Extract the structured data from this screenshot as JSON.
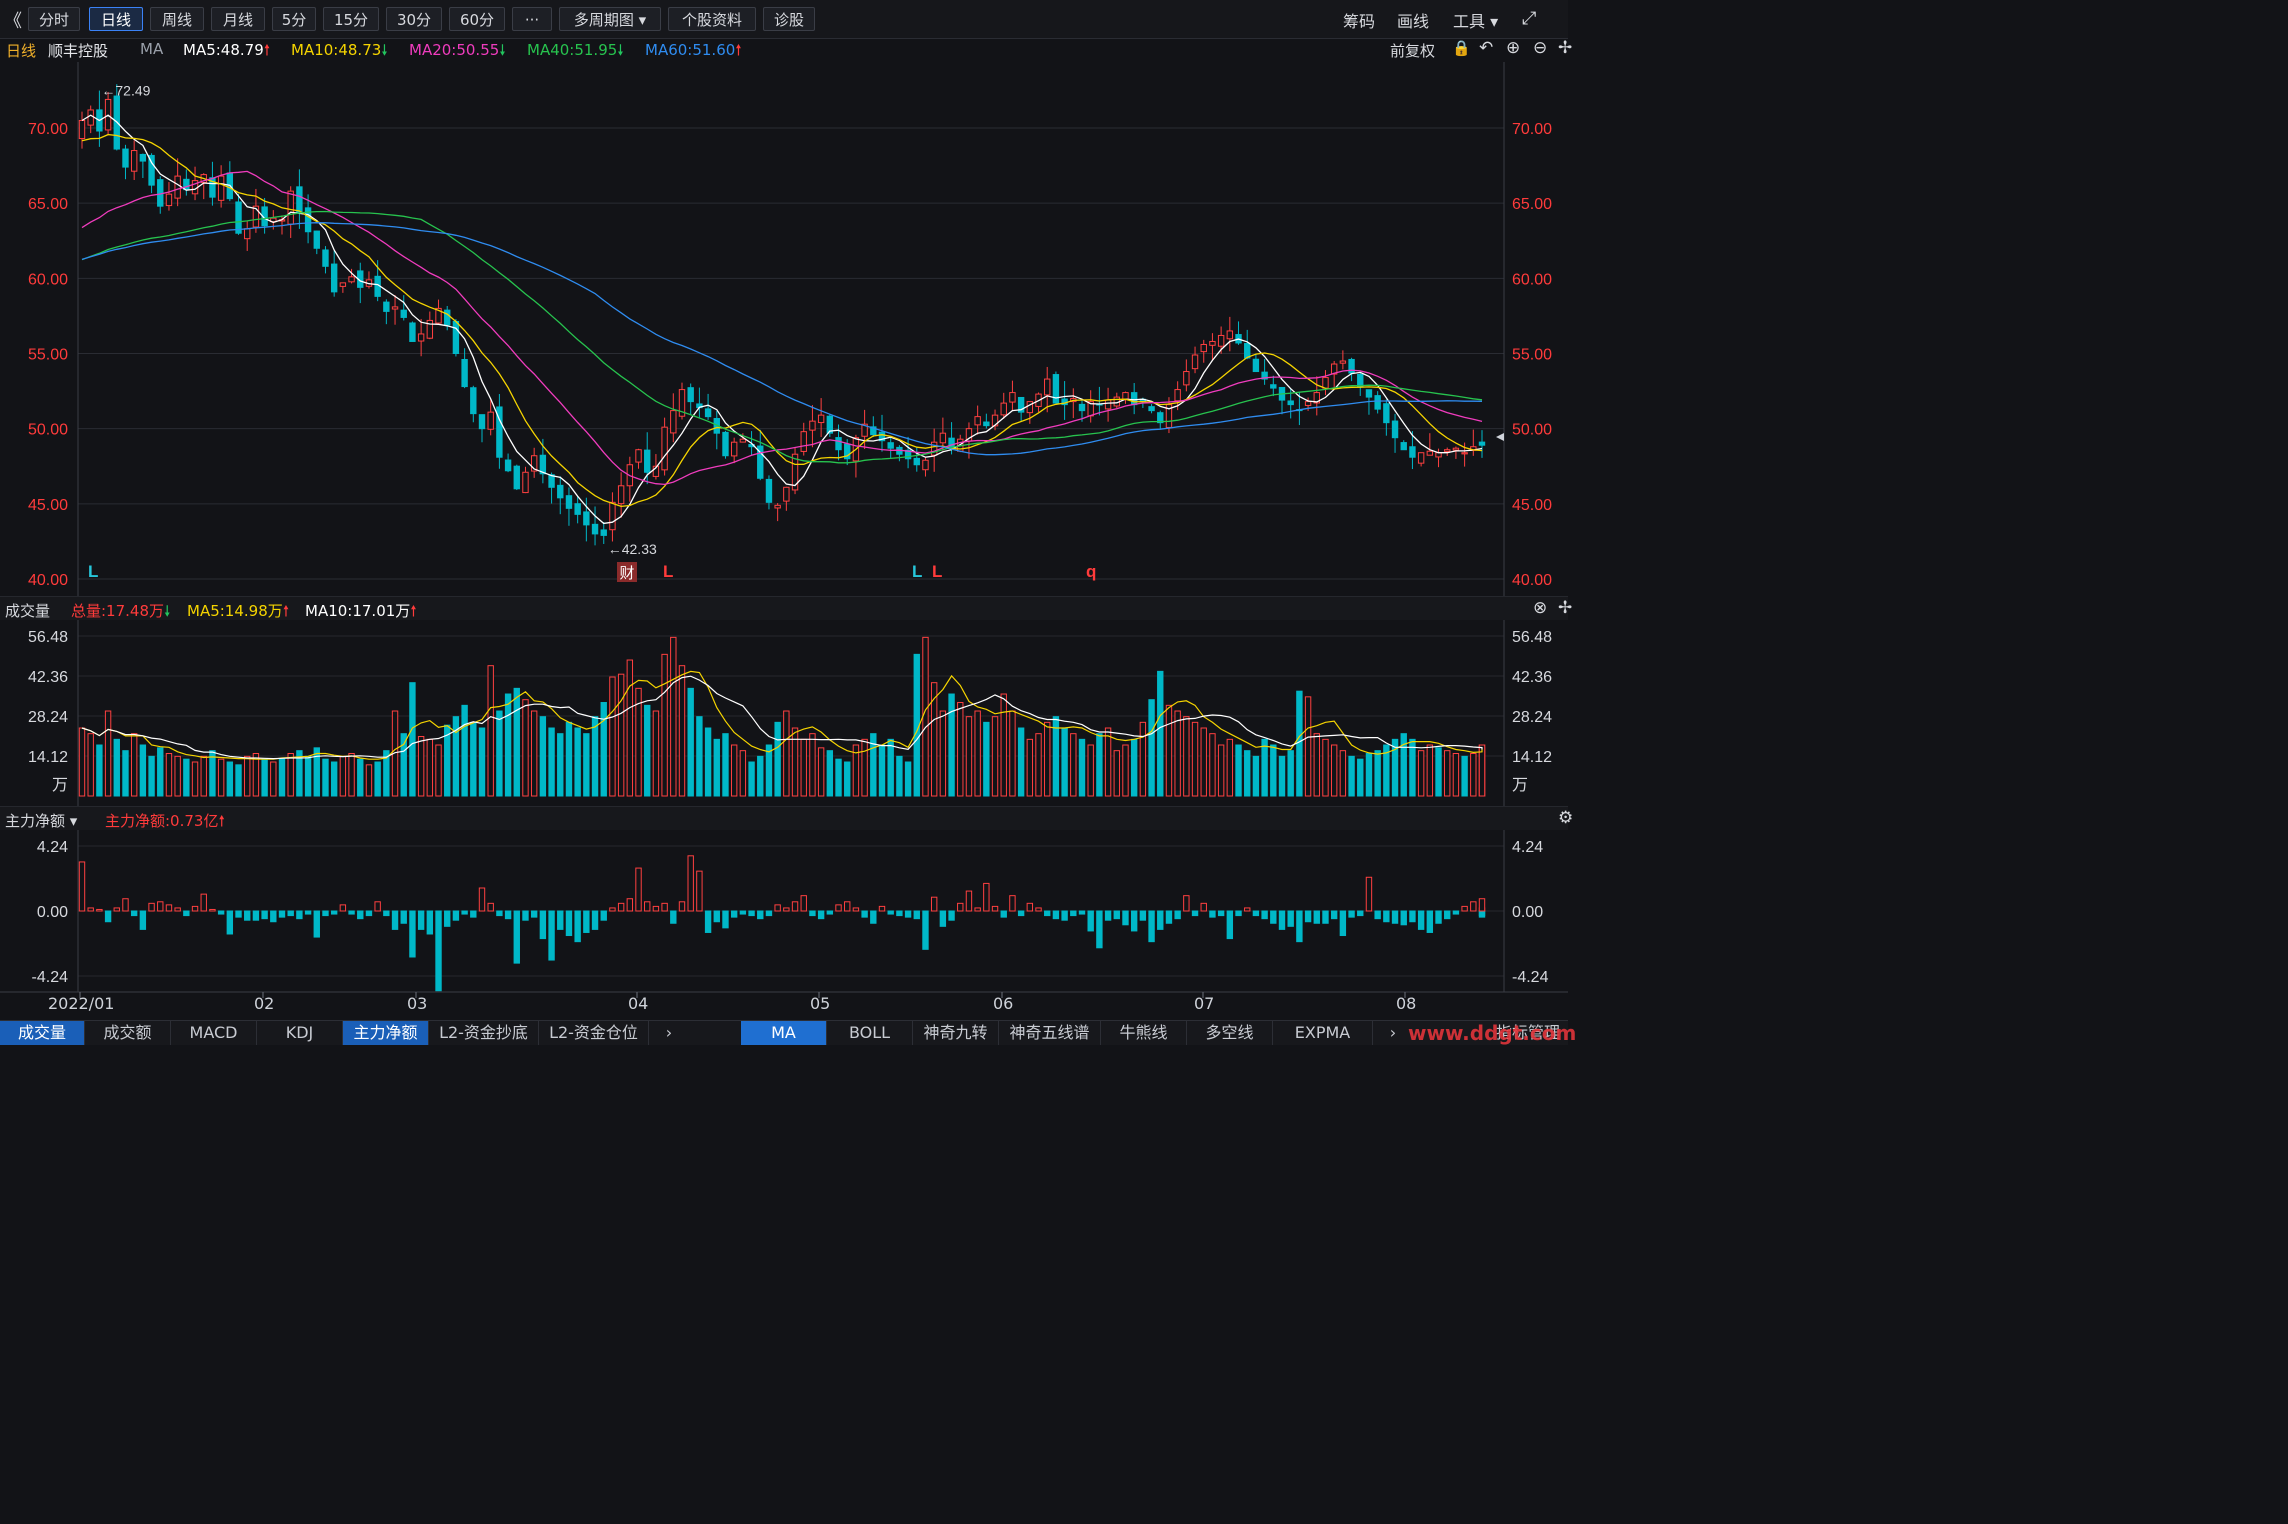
{
  "toolbar": {
    "collapse_glyph": "《",
    "buttons": [
      "分时",
      "日线",
      "周线",
      "月线",
      "5分",
      "15分",
      "30分",
      "60分",
      "···",
      "多周期图 ▾",
      "个股资料",
      "诊股"
    ],
    "active_index": 1,
    "right": [
      "筹码",
      "画线",
      "工具 ▾",
      "⤢"
    ]
  },
  "ma_header": {
    "period": "日线",
    "stock_name": "顺丰控股",
    "ma_label": "MA",
    "ma5": "MA5:48.79",
    "ma10": "MA10:48.73",
    "ma20": "MA20:50.55",
    "ma40": "MA40:51.95",
    "ma60": "MA60:51.60",
    "right_label": "前复权",
    "colors": {
      "ma5": "#ffffff",
      "ma10": "#f5d400",
      "ma20": "#f03cbe",
      "ma40": "#27c34e",
      "ma60": "#2f8cf0"
    }
  },
  "price_axis": {
    "ticks": [
      "70.00",
      "65.00",
      "60.00",
      "55.00",
      "50.00",
      "45.00",
      "40.00"
    ],
    "color": "#ff3b3b"
  },
  "price_annotations": {
    "high": "←72.49",
    "low": "←42.33",
    "fin_badge": "财",
    "markers": [
      {
        "text": "L",
        "color": "#26c6da"
      },
      {
        "text": "L",
        "color": "#ff3b3b"
      },
      {
        "text": "L",
        "color": "#26c6da"
      },
      {
        "text": "L",
        "color": "#ff3b3b"
      },
      {
        "text": "q",
        "color": "#ff3b3b"
      }
    ]
  },
  "volume_header": {
    "title": "成交量",
    "total": "总量:17.48万",
    "ma5": "MA5:14.98万",
    "ma10": "MA10:17.01万"
  },
  "volume_axis": {
    "ticks": [
      "56.48",
      "42.36",
      "28.24",
      "14.12"
    ],
    "unit": "万"
  },
  "fund_header": {
    "title": "主力净额 ▾",
    "value": "主力净额:0.73亿"
  },
  "fund_axis": {
    "ticks": [
      "4.24",
      "0.00",
      "-4.24"
    ]
  },
  "x_axis": {
    "labels": [
      "2022/01",
      "02",
      "03",
      "04",
      "05",
      "06",
      "07",
      "08"
    ]
  },
  "bottom_tabs_left": [
    "成交量",
    "成交额",
    "MACD",
    "KDJ",
    "主力净额",
    "L2-资金抄底",
    "L2-资金仓位"
  ],
  "bottom_tabs_right": [
    "MA",
    "BOLL",
    "神奇九转",
    "神奇五线谱",
    "牛熊线",
    "多空线",
    "EXPMA",
    "指标管理"
  ],
  "watermark": "www.ddgt.com",
  "chart_data": {
    "type": "candlestick",
    "title": "顺丰控股 日线",
    "ylim": [
      40,
      73
    ],
    "x_months": [
      "2022/01",
      "02",
      "03",
      "04",
      "05",
      "06",
      "07",
      "08"
    ],
    "high": 72.49,
    "low": 42.33,
    "close_series": [
      70.5,
      71.2,
      69.8,
      71.9,
      68.6,
      67.4,
      68.5,
      67.8,
      66.2,
      64.8,
      65.6,
      66.8,
      65.9,
      66.5,
      66.9,
      65.4,
      66.8,
      65.3,
      63.0,
      63.3,
      64.8,
      63.5,
      64.0,
      63.9,
      65.8,
      64.4,
      63.1,
      62.0,
      60.8,
      59.1,
      59.7,
      60.1,
      59.4,
      59.9,
      58.8,
      57.8,
      58.1,
      57.4,
      55.8,
      56.3,
      57.2,
      58.0,
      56.9,
      55.0,
      52.8,
      51.0,
      50.0,
      51.1,
      48.1,
      47.2,
      46.0,
      47.1,
      48.2,
      47.0,
      46.1,
      45.4,
      44.7,
      44.3,
      43.6,
      43.0,
      42.9,
      45.1,
      46.2,
      47.6,
      48.6,
      47.1,
      47.5,
      50.1,
      51.2,
      52.6,
      51.8,
      51.4,
      50.8,
      49.7,
      48.2,
      49.1,
      49.3,
      48.8,
      46.7,
      45.1,
      44.9,
      46.1,
      48.3,
      49.8,
      50.5,
      50.9,
      49.7,
      48.6,
      48.0,
      49.4,
      50.3,
      49.6,
      49.2,
      48.7,
      48.3,
      48.0,
      47.6,
      47.9,
      49.1,
      49.7,
      48.7,
      49.3,
      50.0,
      50.8,
      50.2,
      50.9,
      51.7,
      52.4,
      51.1,
      51.8,
      52.3,
      53.3,
      51.7,
      51.6,
      52.0,
      51.2,
      51.8,
      51.6,
      51.9,
      52.1,
      52.4,
      51.6,
      51.8,
      51.2,
      50.4,
      51.6,
      52.6,
      53.8,
      54.9,
      55.6,
      55.8,
      56.2,
      56.5,
      55.7,
      54.7,
      53.8,
      53.3,
      52.7,
      51.9,
      51.6,
      51.2,
      51.8,
      52.4,
      53.4,
      54.3,
      54.5,
      53.7,
      52.8,
      52.1,
      51.3,
      50.4,
      49.4,
      48.6,
      48.1,
      48.4,
      48.5,
      48.4,
      48.6,
      48.7,
      48.4,
      48.8,
      48.9
    ],
    "volume_ylim": [
      0,
      56.48
    ],
    "volume_unit": "万",
    "volume_series": [
      24,
      22,
      18,
      30,
      20,
      16,
      22,
      18,
      14,
      17,
      15,
      14,
      13,
      12,
      14,
      16,
      13,
      12,
      11,
      14,
      15,
      13,
      12,
      13,
      15,
      16,
      14,
      17,
      13,
      12,
      14,
      15,
      13,
      11,
      12,
      16,
      30,
      22,
      40,
      21,
      20,
      18,
      25,
      28,
      32,
      26,
      24,
      46,
      30,
      36,
      38,
      34,
      30,
      28,
      24,
      22,
      26,
      24,
      22,
      28,
      33,
      42,
      43,
      48,
      38,
      32,
      30,
      50,
      56,
      46,
      38,
      28,
      24,
      20,
      22,
      18,
      16,
      12,
      14,
      18,
      26,
      30,
      24,
      20,
      22,
      17,
      16,
      13,
      12,
      18,
      20,
      22,
      18,
      20,
      14,
      12,
      50,
      56,
      40,
      30,
      36,
      33,
      28,
      30,
      26,
      28,
      36,
      30,
      24,
      20,
      22,
      26,
      28,
      24,
      22,
      20,
      18,
      22,
      24,
      16,
      18,
      20,
      26,
      34,
      44,
      32,
      30,
      28,
      26,
      24,
      22,
      18,
      20,
      18,
      16,
      14,
      20,
      18,
      14,
      16,
      37,
      35,
      22,
      20,
      18,
      16,
      14,
      13,
      15,
      16,
      18,
      20,
      22,
      20,
      16,
      18,
      17,
      16,
      15,
      14,
      15,
      18,
      17,
      18
    ],
    "volume_ma5_last": 14.98,
    "volume_ma10_last": 17.01,
    "fund_ylim": [
      -4.24,
      4.24
    ],
    "fund_unit": "亿",
    "fund_series": [
      3.2,
      0.2,
      0.1,
      -0.7,
      0.2,
      0.8,
      -0.3,
      -1.2,
      0.5,
      0.6,
      0.4,
      0.2,
      -0.3,
      0.3,
      1.1,
      0.1,
      -0.2,
      -1.5,
      -0.4,
      -0.6,
      -0.6,
      -0.5,
      -0.7,
      -0.4,
      -0.3,
      -0.5,
      -0.2,
      -1.7,
      -0.3,
      -0.2,
      0.4,
      -0.2,
      -0.5,
      -0.3,
      0.6,
      -0.3,
      -1.2,
      -0.8,
      -3.0,
      -1.2,
      -1.5,
      -5.2,
      -1.0,
      -0.6,
      -0.2,
      -0.4,
      1.5,
      0.5,
      -0.3,
      -0.5,
      -3.4,
      -0.6,
      -0.4,
      -1.8,
      -3.2,
      -1.2,
      -1.6,
      -2.0,
      -1.4,
      -1.2,
      -0.6,
      0.2,
      0.5,
      0.8,
      2.8,
      0.6,
      0.3,
      0.5,
      -0.8,
      0.6,
      3.6,
      2.6,
      -1.4,
      -0.7,
      -1.1,
      -0.4,
      -0.2,
      -0.3,
      -0.5,
      -0.3,
      0.4,
      0.2,
      0.6,
      1.0,
      -0.3,
      -0.5,
      -0.2,
      0.4,
      0.6,
      0.2,
      -0.4,
      -0.8,
      0.3,
      -0.2,
      -0.3,
      -0.4,
      -0.5,
      -2.5,
      0.9,
      -1.0,
      -0.6,
      0.5,
      1.3,
      0.2,
      1.8,
      0.3,
      -0.4,
      1.0,
      -0.3,
      0.5,
      0.2,
      -0.3,
      -0.5,
      -0.6,
      -0.3,
      -0.2,
      -1.3,
      -2.4,
      -0.6,
      -0.5,
      -0.9,
      -1.3,
      -0.6,
      -2.0,
      -1.2,
      -0.8,
      -0.5,
      1.0,
      -0.3,
      0.5,
      -0.4,
      -0.3,
      -1.8,
      -0.3,
      0.2,
      -0.3,
      -0.5,
      -0.8,
      -1.2,
      -1.0,
      -2.0,
      -0.7,
      -0.8,
      -0.8,
      -0.5,
      -1.6,
      -0.4,
      -0.3,
      2.2,
      -0.5,
      -0.7,
      -0.8,
      -0.9,
      -0.7,
      -1.2,
      -1.4,
      -0.8,
      -0.5,
      -0.2,
      0.3,
      0.6,
      -0.4,
      -0.3,
      0.2,
      0.8
    ]
  }
}
